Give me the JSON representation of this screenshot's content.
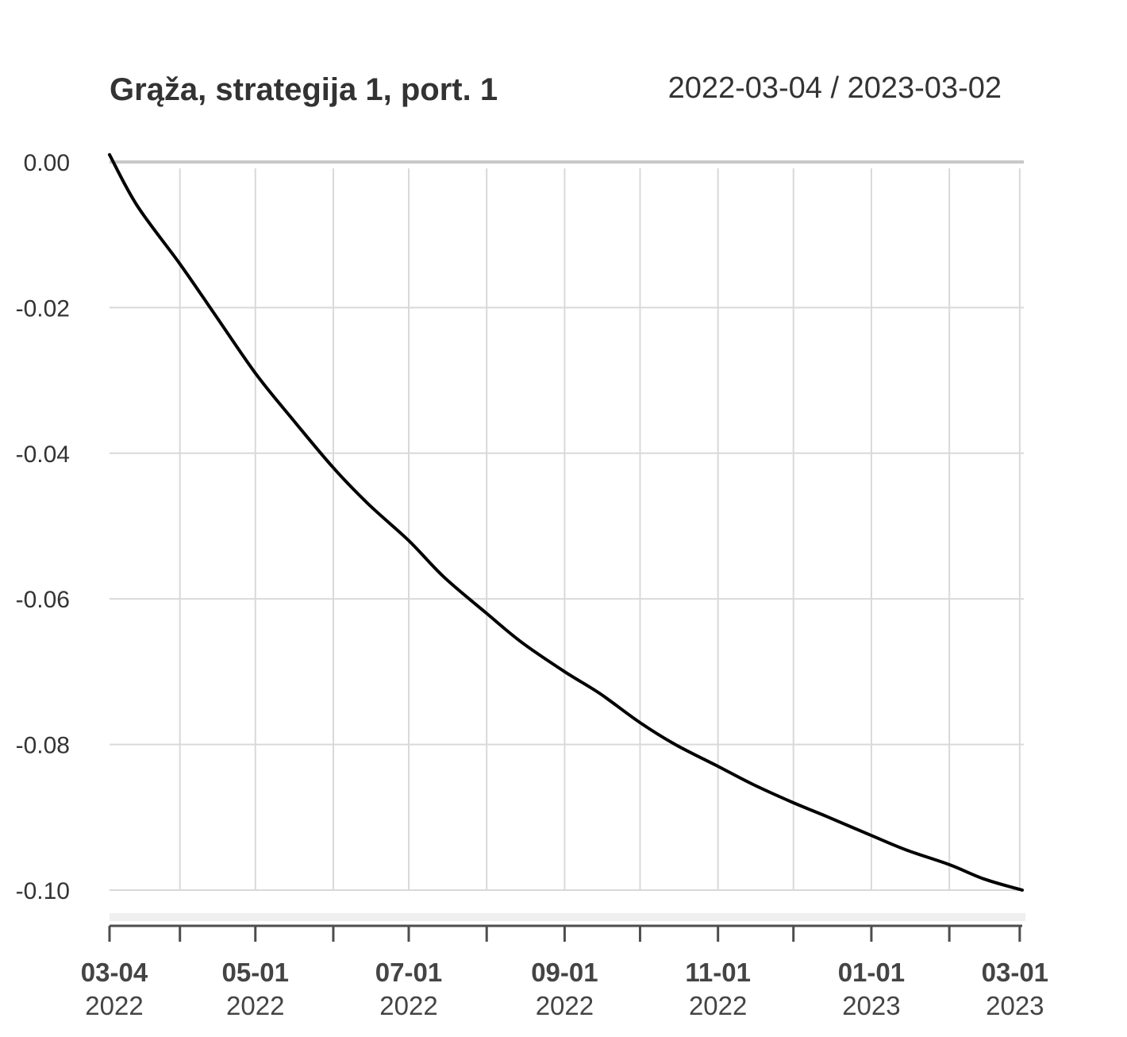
{
  "chart_data": {
    "type": "line",
    "title": "Grąža, strategija 1, port. 1",
    "date_range": "2022-03-04 / 2023-03-02",
    "xlabel": "",
    "ylabel": "",
    "ylim": [
      -0.1,
      0.0
    ],
    "yticks": [
      "0.00",
      "-0.02",
      "-0.04",
      "-0.06",
      "-0.08",
      "-0.10"
    ],
    "ytick_values": [
      0.0,
      -0.02,
      -0.04,
      -0.06,
      -0.08,
      -0.1
    ],
    "xlim": [
      "2022-03-04",
      "2023-03-02"
    ],
    "grid_dates": [
      "2022-04-01",
      "2022-05-01",
      "2022-06-01",
      "2022-07-01",
      "2022-08-01",
      "2022-09-01",
      "2022-10-01",
      "2022-11-01",
      "2022-12-01",
      "2023-01-01",
      "2023-02-01",
      "2023-03-01"
    ],
    "xticks": [
      {
        "date": "2022-03-04",
        "line1": "03-04",
        "line2": "2022"
      },
      {
        "date": "2022-05-01",
        "line1": "05-01",
        "line2": "2022"
      },
      {
        "date": "2022-07-01",
        "line1": "07-01",
        "line2": "2022"
      },
      {
        "date": "2022-09-01",
        "line1": "09-01",
        "line2": "2022"
      },
      {
        "date": "2022-11-01",
        "line1": "11-01",
        "line2": "2022"
      },
      {
        "date": "2023-01-01",
        "line1": "01-01",
        "line2": "2023"
      },
      {
        "date": "2023-03-01",
        "line1": "03-01",
        "line2": "2023"
      }
    ],
    "grid": true,
    "series": [
      {
        "color": "#000000",
        "points": [
          {
            "x": "2022-03-04",
            "y": 0.001
          },
          {
            "x": "2022-03-15",
            "y": -0.006
          },
          {
            "x": "2022-04-01",
            "y": -0.014
          },
          {
            "x": "2022-04-15",
            "y": -0.021
          },
          {
            "x": "2022-05-01",
            "y": -0.029
          },
          {
            "x": "2022-05-15",
            "y": -0.035
          },
          {
            "x": "2022-06-01",
            "y": -0.042
          },
          {
            "x": "2022-06-15",
            "y": -0.047
          },
          {
            "x": "2022-07-01",
            "y": -0.052
          },
          {
            "x": "2022-07-15",
            "y": -0.057
          },
          {
            "x": "2022-08-01",
            "y": -0.062
          },
          {
            "x": "2022-08-15",
            "y": -0.066
          },
          {
            "x": "2022-09-01",
            "y": -0.07
          },
          {
            "x": "2022-09-15",
            "y": -0.073
          },
          {
            "x": "2022-10-01",
            "y": -0.077
          },
          {
            "x": "2022-10-15",
            "y": -0.08
          },
          {
            "x": "2022-11-01",
            "y": -0.083
          },
          {
            "x": "2022-11-15",
            "y": -0.0855
          },
          {
            "x": "2022-12-01",
            "y": -0.088
          },
          {
            "x": "2022-12-15",
            "y": -0.09
          },
          {
            "x": "2023-01-01",
            "y": -0.0925
          },
          {
            "x": "2023-01-15",
            "y": -0.0945
          },
          {
            "x": "2023-02-01",
            "y": -0.0965
          },
          {
            "x": "2023-02-15",
            "y": -0.0985
          },
          {
            "x": "2023-03-02",
            "y": -0.1
          }
        ]
      }
    ]
  }
}
